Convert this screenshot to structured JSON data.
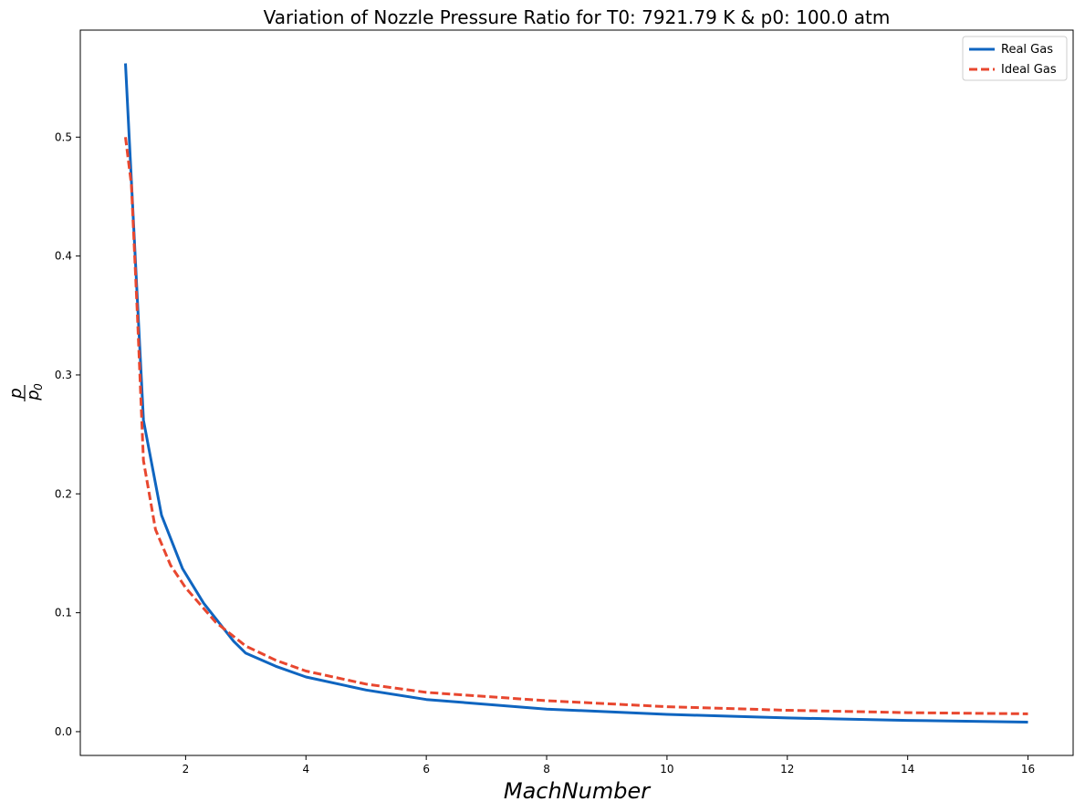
{
  "chart_data": {
    "type": "line",
    "title": "Variation of Nozzle Pressure Ratio for T0: 7921.79 K & p0: 100.0 atm",
    "xlabel": "MachNumber",
    "ylabel": {
      "numerator": "p",
      "denominator": "p",
      "denominator_subscript": "0"
    },
    "xlim": [
      0.25,
      16.75
    ],
    "ylim": [
      -0.02,
      0.59
    ],
    "xticks": [
      2,
      4,
      6,
      8,
      10,
      12,
      14,
      16
    ],
    "yticks": [
      0.0,
      0.1,
      0.2,
      0.3,
      0.4,
      0.5
    ],
    "ytick_labels": [
      "0.0",
      "0.1",
      "0.2",
      "0.3",
      "0.4",
      "0.5"
    ],
    "grid": false,
    "legend_position": "top-right",
    "series": [
      {
        "name": "Real Gas",
        "color": "#0f65c0",
        "style": "solid",
        "x": [
          1.0,
          1.3,
          1.6,
          1.95,
          2.3,
          2.8,
          3.0,
          3.5,
          4.0,
          5.0,
          6.0,
          8.0,
          10.0,
          12.0,
          14.0,
          16.0
        ],
        "y": [
          0.562,
          0.262,
          0.182,
          0.137,
          0.108,
          0.076,
          0.066,
          0.055,
          0.046,
          0.035,
          0.027,
          0.019,
          0.0145,
          0.0115,
          0.0095,
          0.008
        ]
      },
      {
        "name": "Ideal Gas",
        "color": "#e8472f",
        "style": "dashed",
        "x": [
          1.0,
          1.1,
          1.2,
          1.3,
          1.5,
          1.75,
          2.0,
          2.5,
          3.0,
          3.5,
          4.0,
          5.0,
          6.0,
          8.0,
          10.0,
          12.0,
          14.0,
          16.0
        ],
        "y": [
          0.5,
          0.46,
          0.35,
          0.228,
          0.17,
          0.14,
          0.121,
          0.092,
          0.072,
          0.06,
          0.051,
          0.04,
          0.033,
          0.026,
          0.021,
          0.018,
          0.016,
          0.015
        ]
      }
    ]
  }
}
